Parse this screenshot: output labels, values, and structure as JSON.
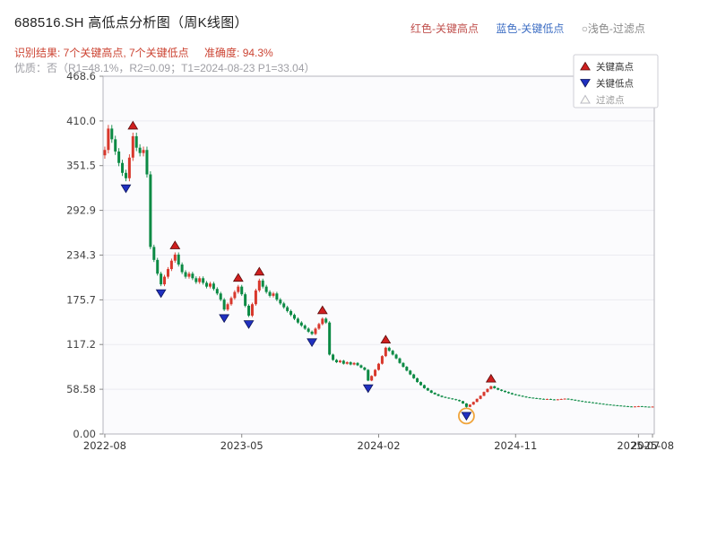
{
  "header": {
    "title": "688516.SH 高低点分析图（周K线图）",
    "legend_top": [
      {
        "label": "红色-关键高点",
        "color": "#c0504d"
      },
      {
        "label": "蓝色-关键低点",
        "color": "#3f6fc4"
      },
      {
        "label": "○浅色-过滤点",
        "color": "#8a8a8a"
      }
    ],
    "result_line": "识别结果: 7个关键高点, 7个关键低点",
    "accuracy": "准确度: 94.3%",
    "result_color": "#cc4433",
    "quality_line": "优质：否（R1=48.1%，R2=0.09；T1=2024-08-23 P1=33.04）",
    "quality_color": "#9e9ea4"
  },
  "chart_data": {
    "type": "candlestick",
    "title": "688516.SH weekly K-line with key high/low detection",
    "xlabel": "",
    "ylabel": "",
    "frequency": "weekly",
    "start_date": "2022-08",
    "ylim": [
      0,
      468.6
    ],
    "grid": true,
    "y_ticks": [
      {
        "label": "0.00",
        "value": 0
      },
      {
        "label": "58.58",
        "value": 58.58
      },
      {
        "label": "117.2",
        "value": 117.2
      },
      {
        "label": "175.7",
        "value": 175.7
      },
      {
        "label": "234.3",
        "value": 234.3
      },
      {
        "label": "292.9",
        "value": 292.9
      },
      {
        "label": "351.5",
        "value": 351.5
      },
      {
        "label": "410.0",
        "value": 410.0
      },
      {
        "label": "468.6",
        "value": 468.6
      }
    ],
    "x_ticks": [
      {
        "label": "2022-08",
        "week": 0
      },
      {
        "label": "2023-05",
        "week": 39
      },
      {
        "label": "2024-02",
        "week": 78
      },
      {
        "label": "2024-11",
        "week": 117
      },
      {
        "label": "2025-07",
        "week": 152
      },
      {
        "label": "2025-08",
        "week": 156
      }
    ],
    "first_open": 365,
    "wick_high_factor": 1.012,
    "wick_low_factor": 0.988,
    "close": [
      372,
      400,
      386,
      370,
      355,
      342,
      335,
      362,
      390,
      375,
      368,
      372,
      340,
      245,
      228,
      210,
      196,
      206,
      216,
      227,
      235,
      222,
      212,
      206,
      210,
      204,
      199,
      204,
      198,
      193,
      197,
      190,
      184,
      176,
      163,
      170,
      178,
      186,
      193,
      183,
      168,
      155,
      170,
      188,
      201,
      193,
      186,
      181,
      184,
      176,
      171,
      166,
      161,
      156,
      151,
      146,
      142,
      138,
      134,
      131,
      138,
      144,
      151,
      146,
      104,
      97,
      94,
      96,
      92,
      94,
      91,
      93,
      90,
      87,
      84,
      70,
      76,
      84,
      92,
      102,
      113,
      109,
      104,
      99,
      93,
      88,
      83,
      78,
      73,
      68,
      64,
      60,
      57,
      54,
      52,
      50,
      48.5,
      47.5,
      46.5,
      45.5,
      44.5,
      43,
      40,
      35.5,
      38.5,
      42,
      46,
      50,
      55,
      59,
      62.5,
      60,
      58,
      56.5,
      55,
      53.5,
      52,
      51,
      50,
      49,
      48,
      47.5,
      47,
      46.5,
      46,
      45.5,
      45.8,
      45.2,
      44.8,
      45.3,
      45.8,
      46.2,
      45.5,
      44.8,
      44,
      43.2,
      42.5,
      42,
      41.4,
      40.8,
      40.2,
      39.6,
      39,
      38.5,
      38,
      37.6,
      37.2,
      36.8,
      36.4,
      36,
      35.7,
      36,
      36.3,
      36,
      35.7,
      35.4,
      35.8
    ],
    "key_high_weeks": [
      8,
      20,
      38,
      44,
      62,
      80,
      110
    ],
    "key_low_weeks": [
      6,
      16,
      34,
      41,
      59,
      75,
      103
    ],
    "filtered_point": {
      "week": 103,
      "price": 33.04,
      "date": "2024-08-23",
      "circled": true
    },
    "legend": [
      {
        "label": "关键高点",
        "marker": "up",
        "color": "#cf1f1f",
        "text_color": "#333333"
      },
      {
        "label": "关键低点",
        "marker": "down",
        "color": "#2030c0",
        "text_color": "#333333"
      },
      {
        "label": "过滤点",
        "marker": "open",
        "color": "#b9b9c2",
        "text_color": "#999999"
      }
    ],
    "colors": {
      "up": "#d8382c",
      "down": "#0b8a44",
      "key_high": "#cf1f1f",
      "key_low": "#2030c0",
      "filter_circle": "#f0a43a",
      "grid": "#ebebf1",
      "border": "#b5b5bd",
      "axis_text": "#444444",
      "plot_bg": "#fbfbfd"
    }
  }
}
